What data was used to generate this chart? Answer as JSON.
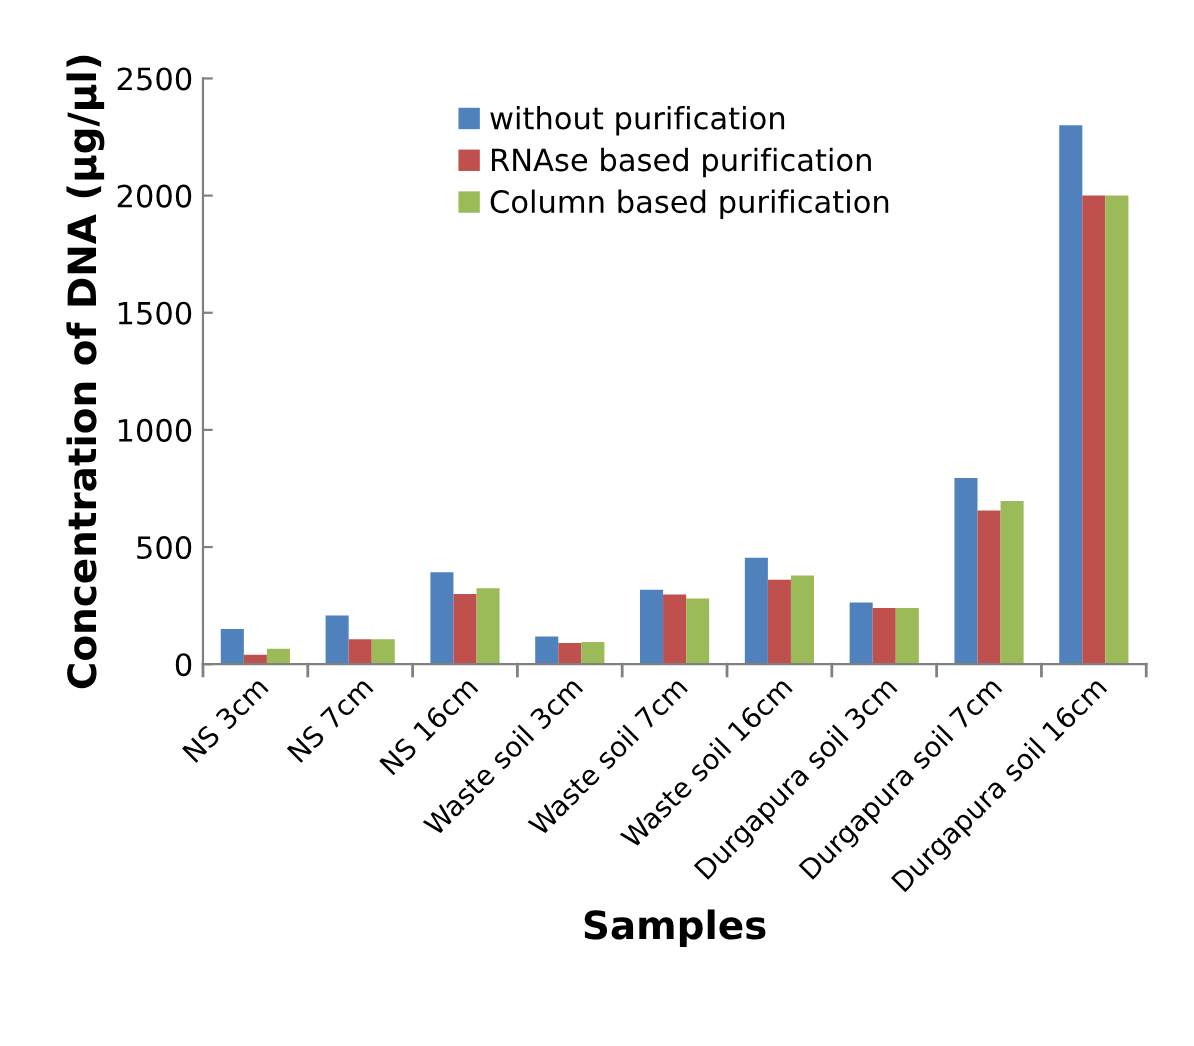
{
  "chart_data": {
    "type": "bar",
    "xlabel": "Samples",
    "ylabel": "Concentration of DNA (µg/µl)",
    "categories": [
      "NS 3cm",
      "NS 7cm",
      "NS 16cm",
      "Waste soil 3cm",
      "Waste soil 7cm",
      "Waste soil 16cm",
      "Durgapura soil 3cm",
      "Durgapura soil 7cm",
      "Durgapura soil 16cm"
    ],
    "series": [
      {
        "name": "without purification",
        "color": "#4f81bd",
        "values": [
          150,
          208,
          393,
          118,
          318,
          454,
          263,
          795,
          2300
        ]
      },
      {
        "name": "RNAse based purification",
        "color": "#c0504d",
        "values": [
          40,
          107,
          300,
          90,
          298,
          361,
          240,
          656,
          2000
        ]
      },
      {
        "name": "Column based purification",
        "color": "#9bbb59",
        "values": [
          66,
          107,
          324,
          95,
          280,
          379,
          240,
          697,
          2000
        ]
      }
    ],
    "ylim": [
      0,
      2500
    ],
    "yticks": [
      0,
      500,
      1000,
      1500,
      2000,
      2500
    ],
    "grid": false,
    "legend": "top"
  }
}
